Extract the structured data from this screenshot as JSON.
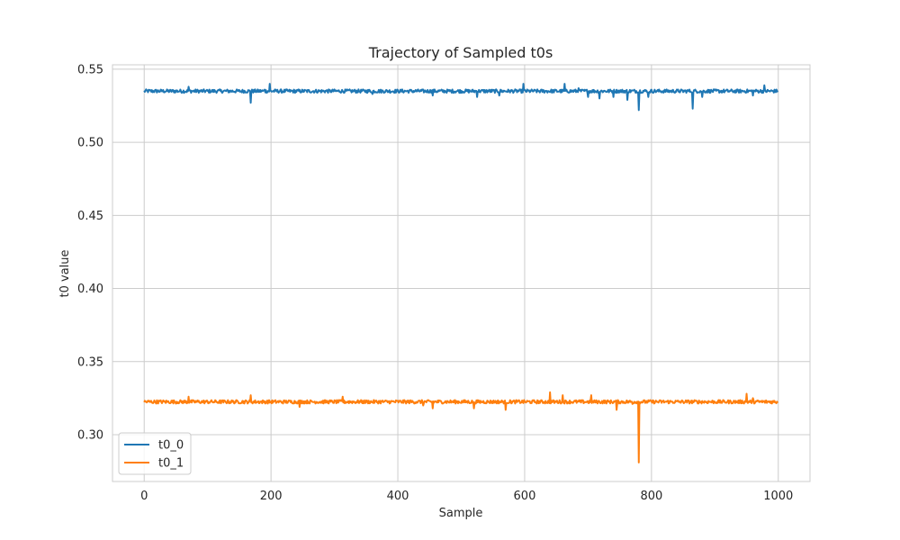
{
  "chart_data": {
    "type": "line",
    "title": "Trajectory of Sampled t0s",
    "xlabel": "Sample",
    "ylabel": "t0 value",
    "xlim": [
      -50,
      1050
    ],
    "ylim": [
      0.268,
      0.553
    ],
    "xticks": [
      0,
      200,
      400,
      600,
      800,
      1000
    ],
    "yticks": [
      0.3,
      0.35,
      0.4,
      0.45,
      0.5,
      0.55
    ],
    "grid": true,
    "legend_position": "bottom-left",
    "num_samples": 1000,
    "series": [
      {
        "name": "t0_0",
        "color": "#1f77b4",
        "base": 0.535,
        "noise": 0.0012,
        "spikes": [
          [
            70,
            0.538
          ],
          [
            168,
            0.527
          ],
          [
            190,
            0.536
          ],
          [
            198,
            0.54
          ],
          [
            360,
            0.533
          ],
          [
            455,
            0.532
          ],
          [
            525,
            0.531
          ],
          [
            560,
            0.532
          ],
          [
            598,
            0.54
          ],
          [
            663,
            0.54
          ],
          [
            685,
            0.537
          ],
          [
            700,
            0.531
          ],
          [
            718,
            0.53
          ],
          [
            740,
            0.531
          ],
          [
            762,
            0.529
          ],
          [
            780,
            0.522
          ],
          [
            795,
            0.531
          ],
          [
            865,
            0.523
          ],
          [
            880,
            0.531
          ],
          [
            960,
            0.532
          ],
          [
            978,
            0.539
          ]
        ]
      },
      {
        "name": "t0_1",
        "color": "#ff7f0e",
        "base": 0.3225,
        "noise": 0.0012,
        "spikes": [
          [
            70,
            0.326
          ],
          [
            168,
            0.327
          ],
          [
            245,
            0.319
          ],
          [
            313,
            0.326
          ],
          [
            440,
            0.32
          ],
          [
            455,
            0.318
          ],
          [
            520,
            0.318
          ],
          [
            570,
            0.317
          ],
          [
            640,
            0.329
          ],
          [
            660,
            0.327
          ],
          [
            705,
            0.327
          ],
          [
            745,
            0.317
          ],
          [
            770,
            0.321
          ],
          [
            780,
            0.281
          ],
          [
            950,
            0.328
          ],
          [
            960,
            0.325
          ]
        ]
      }
    ]
  }
}
